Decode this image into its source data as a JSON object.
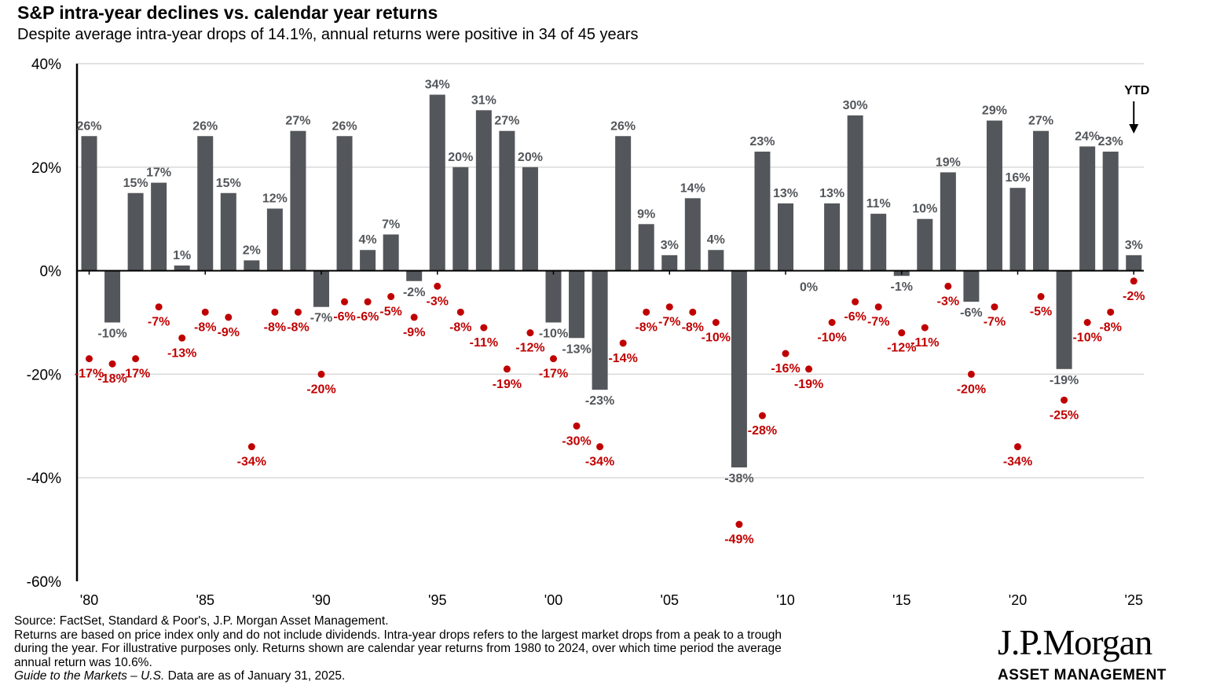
{
  "header": {
    "title": "S&P intra-year declines vs. calendar year returns",
    "subtitle": "Despite average intra-year drops of 14.1%, annual returns were positive in 34 of 45 years"
  },
  "chart_data": {
    "type": "bar",
    "title": "S&P intra-year declines vs. calendar year returns",
    "ylim": [
      -60,
      40
    ],
    "y_ticks": [
      {
        "value": 40,
        "label": "40%"
      },
      {
        "value": 20,
        "label": "20%"
      },
      {
        "value": 0,
        "label": "0%"
      },
      {
        "value": -20,
        "label": "-20%"
      },
      {
        "value": -40,
        "label": "-40%"
      },
      {
        "value": -60,
        "label": "-60%"
      }
    ],
    "x_ticks": [
      {
        "year": 1980,
        "label": "'80"
      },
      {
        "year": 1985,
        "label": "'85"
      },
      {
        "year": 1990,
        "label": "'90"
      },
      {
        "year": 1995,
        "label": "'95"
      },
      {
        "year": 2000,
        "label": "'00"
      },
      {
        "year": 2005,
        "label": "'05"
      },
      {
        "year": 2010,
        "label": "'10"
      },
      {
        "year": 2015,
        "label": "'15"
      },
      {
        "year": 2020,
        "label": "'20"
      },
      {
        "year": 2025,
        "label": "'25"
      }
    ],
    "years": [
      1980,
      1981,
      1982,
      1983,
      1984,
      1985,
      1986,
      1987,
      1988,
      1989,
      1990,
      1991,
      1992,
      1993,
      1994,
      1995,
      1996,
      1997,
      1998,
      1999,
      2000,
      2001,
      2002,
      2003,
      2004,
      2005,
      2006,
      2007,
      2008,
      2009,
      2010,
      2011,
      2012,
      2013,
      2014,
      2015,
      2016,
      2017,
      2018,
      2019,
      2020,
      2021,
      2022,
      2023,
      2024,
      2025
    ],
    "series": [
      {
        "name": "Calendar year return",
        "color": "#53565a",
        "values": [
          26,
          -10,
          15,
          17,
          1,
          26,
          15,
          2,
          12,
          27,
          -7,
          26,
          4,
          7,
          -2,
          34,
          20,
          31,
          27,
          20,
          -10,
          -13,
          -23,
          26,
          9,
          3,
          14,
          4,
          -38,
          23,
          13,
          0,
          13,
          30,
          11,
          -1,
          10,
          19,
          -6,
          29,
          16,
          27,
          -19,
          24,
          23,
          3
        ],
        "labels": [
          "26%",
          "-10%",
          "15%",
          "17%",
          "1%",
          "26%",
          "15%",
          "2%",
          "12%",
          "27%",
          "-7%",
          "26%",
          "4%",
          "7%",
          "-2%",
          "34%",
          "20%",
          "31%",
          "27%",
          "20%",
          "-10%",
          "-13%",
          "-23%",
          "26%",
          "9%",
          "3%",
          "14%",
          "4%",
          "-38%",
          "23%",
          "13%",
          "0%",
          "13%",
          "30%",
          "11%",
          "-1%",
          "10%",
          "19%",
          "-6%",
          "29%",
          "16%",
          "27%",
          "-19%",
          "24%",
          "23%",
          "3%"
        ]
      },
      {
        "name": "Intra-year decline",
        "color": "#c00000",
        "values": [
          -17,
          -18,
          -17,
          -7,
          -13,
          -8,
          -9,
          -34,
          -8,
          -8,
          -20,
          -6,
          -6,
          -5,
          -9,
          -3,
          -8,
          -11,
          -19,
          -12,
          -17,
          -30,
          -34,
          -14,
          -8,
          -7,
          -8,
          -10,
          -49,
          -28,
          -16,
          -19,
          -10,
          -6,
          -7,
          -12,
          -11,
          -3,
          -20,
          -7,
          -34,
          -5,
          -25,
          -10,
          -8,
          -2
        ],
        "labels": [
          "-17%",
          "-18%",
          "-17%",
          "-7%",
          "-13%",
          "-8%",
          "-9%",
          "-34%",
          "-8%",
          "-8%",
          "-20%",
          "-6%",
          "-6%",
          "-5%",
          "-9%",
          "-3%",
          "-8%",
          "-11%",
          "-19%",
          "-12%",
          "-17%",
          "-30%",
          "-34%",
          "-14%",
          "-8%",
          "-7%",
          "-8%",
          "-10%",
          "-49%",
          "-28%",
          "-16%",
          "-19%",
          "-10%",
          "-6%",
          "-7%",
          "-12%",
          "-11%",
          "-3%",
          "-20%",
          "-7%",
          "-34%",
          "-5%",
          "-25%",
          "-10%",
          "-8%",
          "-2%"
        ]
      }
    ],
    "annotation": {
      "label": "YTD",
      "year": 2025
    },
    "colors": {
      "bar": "#53565a",
      "drop": "#c00000",
      "grid": "#d9d9d9",
      "axis": "#000000",
      "bar_label": "#53565a"
    }
  },
  "footer": {
    "source": "Source: FactSet, Standard & Poor's, J.P. Morgan Asset Management.",
    "note_line1": "Returns are based on price index only and do not include dividends. Intra-year drops refers to the largest market drops from a peak to a trough",
    "note_line2": "during the year. For illustrative purposes only. Returns shown are calendar year returns from 1980 to 2024, over which time period the average",
    "note_line3": "annual return was 10.6%.",
    "guide_title": "Guide to the Markets – U.S.",
    "data_date": " Data are as of January 31, 2025."
  },
  "logo": {
    "name": "J.P.Morgan",
    "sub": "ASSET MANAGEMENT"
  }
}
